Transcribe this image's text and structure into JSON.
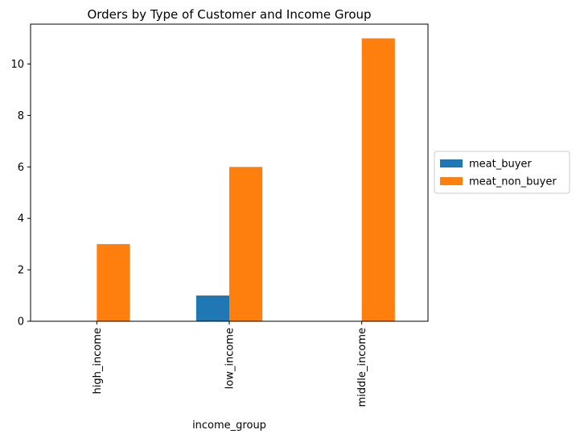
{
  "chart_data": {
    "type": "bar",
    "title": "Orders by Type of Customer and Income Group",
    "xlabel": "income_group",
    "ylabel": "",
    "categories": [
      "high_income",
      "low_income",
      "middle_income"
    ],
    "series": [
      {
        "name": "meat_buyer",
        "values": [
          0,
          1,
          0
        ],
        "color": "#1f77b4"
      },
      {
        "name": "meat_non_buyer",
        "values": [
          3,
          6,
          11
        ],
        "color": "#ff7f0e"
      }
    ],
    "ylim": [
      0,
      11.55
    ],
    "yticks": [
      0,
      2,
      4,
      6,
      8,
      10
    ],
    "grid": false,
    "legend": "outside-right"
  }
}
